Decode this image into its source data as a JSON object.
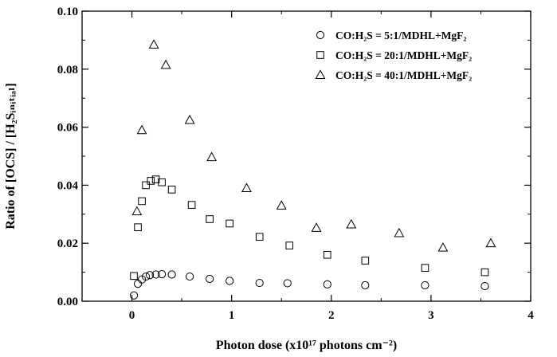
{
  "chart_data": {
    "type": "scatter",
    "xlabel": "Photon dose (x10¹⁷ photons cm⁻²)",
    "ylabel": "Ratio of [OCS] / [H₂Sᵢₙᵢₜᵢₐₗ]",
    "xlim": [
      -0.5,
      4
    ],
    "ylim": [
      0,
      0.1
    ],
    "x_ticks": [
      "0",
      "1",
      "2",
      "3",
      "4"
    ],
    "y_ticks": [
      "0.00",
      "0.02",
      "0.04",
      "0.06",
      "0.08",
      "0.10"
    ],
    "grid": false,
    "legend_position": "top-right",
    "series": [
      {
        "name": "CO:H₂S = 5:1/MDHL+MgF₂",
        "marker": "circle",
        "x": [
          0.02,
          0.06,
          0.1,
          0.14,
          0.18,
          0.24,
          0.3,
          0.4,
          0.58,
          0.78,
          0.98,
          1.28,
          1.56,
          1.96,
          2.34,
          2.94,
          3.54
        ],
        "y": [
          0.002,
          0.006,
          0.0075,
          0.0085,
          0.009,
          0.0092,
          0.0093,
          0.0092,
          0.0085,
          0.0077,
          0.007,
          0.0063,
          0.0062,
          0.0058,
          0.0055,
          0.0055,
          0.0052
        ]
      },
      {
        "name": "CO:H₂S = 20:1/MDHL+MgF₂",
        "marker": "square",
        "x": [
          0.02,
          0.06,
          0.1,
          0.14,
          0.19,
          0.24,
          0.3,
          0.4,
          0.6,
          0.78,
          0.98,
          1.28,
          1.58,
          1.96,
          2.34,
          2.94,
          3.54
        ],
        "y": [
          0.0087,
          0.0255,
          0.0345,
          0.04,
          0.0415,
          0.042,
          0.041,
          0.0385,
          0.0332,
          0.0283,
          0.0268,
          0.0222,
          0.0192,
          0.016,
          0.014,
          0.0115,
          0.01
        ]
      },
      {
        "name": "CO:H₂S = 40:1/MDHL+MgF₂",
        "marker": "triangle",
        "x": [
          0.05,
          0.1,
          0.22,
          0.34,
          0.58,
          0.8,
          1.15,
          1.5,
          1.85,
          2.2,
          2.68,
          3.12,
          3.6
        ],
        "y": [
          0.031,
          0.059,
          0.0885,
          0.0815,
          0.0625,
          0.0497,
          0.039,
          0.033,
          0.0253,
          0.0265,
          0.0235,
          0.0185,
          0.02
        ]
      }
    ]
  }
}
